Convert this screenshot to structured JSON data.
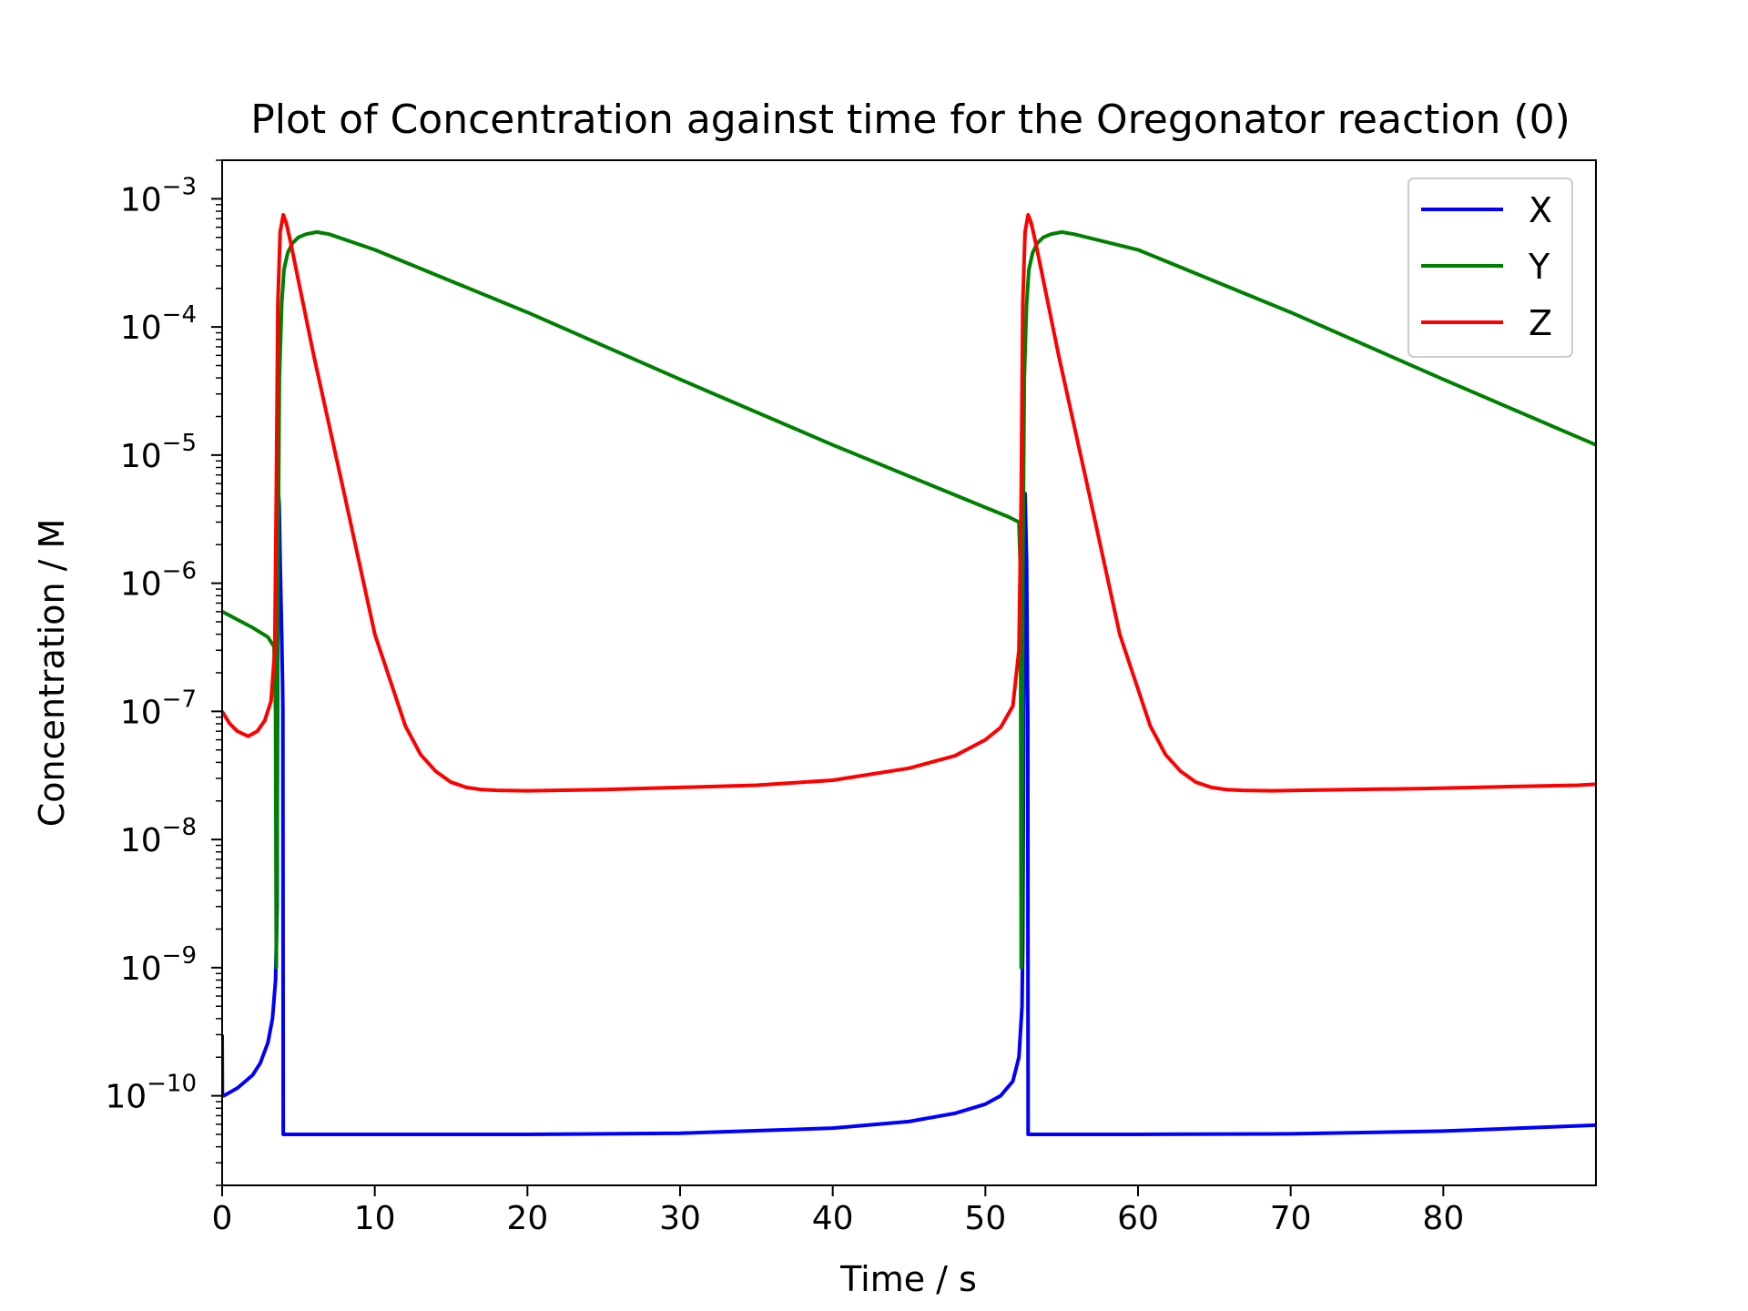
{
  "chart_data": {
    "type": "line",
    "title": "Plot of Concentration against time for the Oregonator reaction (0)",
    "xlabel": "Time / s",
    "ylabel": "Concentration / M",
    "xlim": [
      0,
      90
    ],
    "ylim": [
      2e-11,
      0.002
    ],
    "yscale": "log",
    "grid": false,
    "legend_position": "top-right",
    "x_ticks": [
      0,
      10,
      20,
      30,
      40,
      50,
      60,
      70,
      80
    ],
    "y_ticks": [
      {
        "value": 1e-10,
        "base": "10",
        "exp": "−10"
      },
      {
        "value": 1e-09,
        "base": "10",
        "exp": "−9"
      },
      {
        "value": 1e-08,
        "base": "10",
        "exp": "−8"
      },
      {
        "value": 1e-07,
        "base": "10",
        "exp": "−7"
      },
      {
        "value": 1e-06,
        "base": "10",
        "exp": "−6"
      },
      {
        "value": 1e-05,
        "base": "10",
        "exp": "−5"
      },
      {
        "value": 0.0001,
        "base": "10",
        "exp": "−4"
      },
      {
        "value": 0.001,
        "base": "10",
        "exp": "−3"
      }
    ],
    "series": [
      {
        "name": "X",
        "color": "#0000ff",
        "x": [
          0,
          0.02,
          0.1,
          1,
          2,
          2.5,
          3,
          3.3,
          3.5,
          3.6,
          3.62,
          3.66,
          3.7,
          3.74,
          3.8,
          3.9,
          3.96,
          3.98,
          4.0,
          4.02,
          5,
          10,
          20,
          30,
          40,
          45,
          48,
          50,
          51,
          51.8,
          52.2,
          52.4,
          52.45,
          52.5,
          52.55,
          52.6,
          52.7,
          52.76,
          52.78,
          52.8,
          52.82,
          55,
          60,
          70,
          80,
          90
        ],
        "y": [
          3e-10,
          1e-10,
          1e-10,
          1.15e-10,
          1.45e-10,
          1.8e-10,
          2.6e-10,
          4e-10,
          8e-10,
          3e-09,
          5e-08,
          1e-06,
          5e-06,
          4e-06,
          1.5e-06,
          4e-07,
          1.6e-07,
          1e-07,
          5e-11,
          5e-11,
          5e-11,
          5e-11,
          5e-11,
          5.1e-11,
          5.6e-11,
          6.3e-11,
          7.3e-11,
          8.6e-11,
          1e-10,
          1.3e-10,
          2e-10,
          5e-10,
          1.5e-09,
          5e-08,
          1e-06,
          5e-06,
          1.5e-06,
          1.6e-07,
          1e-07,
          5e-11,
          5e-11,
          5e-11,
          5e-11,
          5.05e-11,
          5.3e-11,
          5.9e-11
        ]
      },
      {
        "name": "Y",
        "color": "#008000",
        "x": [
          0,
          1,
          2,
          3,
          3.4,
          3.5,
          3.55,
          3.6,
          3.65,
          3.75,
          3.9,
          4.05,
          4.3,
          4.6,
          5,
          5.5,
          6.2,
          7,
          10,
          20,
          30,
          40,
          50,
          51.5,
          52.2,
          52.3,
          52.35,
          52.4,
          52.45,
          52.55,
          52.7,
          52.85,
          53.1,
          53.4,
          53.8,
          54.3,
          55,
          55.8,
          60,
          70,
          80,
          90
        ],
        "y": [
          6e-07,
          5.2e-07,
          4.5e-07,
          3.8e-07,
          3.2e-07,
          1e-07,
          1e-09,
          1e-08,
          1e-06,
          4e-05,
          0.00015,
          0.00028,
          0.00038,
          0.00045,
          0.0005,
          0.00053,
          0.00055,
          0.00053,
          0.0004,
          0.00013,
          3.9e-05,
          1.2e-05,
          3.9e-06,
          3.3e-06,
          3e-06,
          1.2e-06,
          1e-09,
          1e-08,
          1e-06,
          4e-05,
          0.00015,
          0.00028,
          0.00038,
          0.00045,
          0.0005,
          0.00053,
          0.00055,
          0.00053,
          0.0004,
          0.00013,
          3.9e-05,
          1.2e-05
        ]
      },
      {
        "name": "Z",
        "color": "#ff0000",
        "x": [
          0,
          0.5,
          1,
          1.7,
          2.3,
          2.8,
          3.2,
          3.45,
          3.55,
          3.65,
          3.8,
          4.0,
          4.2,
          4.5,
          6,
          8,
          10,
          12,
          13,
          14,
          15,
          16,
          17,
          18,
          20,
          25,
          30,
          35,
          40,
          45,
          48,
          50,
          51,
          51.8,
          52.2,
          52.35,
          52.45,
          52.6,
          52.8,
          53.0,
          53.3,
          54.8,
          56.8,
          58.8,
          60.8,
          61.8,
          62.8,
          63.8,
          64.8,
          65.8,
          66.8,
          68.8,
          73.8,
          78.8,
          83.8,
          88.8,
          90
        ],
        "y": [
          1e-07,
          8e-08,
          7e-08,
          6.4e-08,
          7e-08,
          8.5e-08,
          1.2e-07,
          3e-07,
          5e-06,
          0.00015,
          0.00055,
          0.00075,
          0.00065,
          0.00045,
          6e-05,
          5e-06,
          4e-07,
          7.7e-08,
          4.6e-08,
          3.4e-08,
          2.8e-08,
          2.55e-08,
          2.45e-08,
          2.42e-08,
          2.4e-08,
          2.45e-08,
          2.55e-08,
          2.65e-08,
          2.9e-08,
          3.6e-08,
          4.5e-08,
          6e-08,
          7.5e-08,
          1.1e-07,
          3e-07,
          5e-06,
          0.00015,
          0.00055,
          0.00075,
          0.00065,
          0.00045,
          6e-05,
          5e-06,
          4e-07,
          7.7e-08,
          4.6e-08,
          3.4e-08,
          2.8e-08,
          2.55e-08,
          2.45e-08,
          2.42e-08,
          2.4e-08,
          2.45e-08,
          2.5e-08,
          2.58e-08,
          2.65e-08,
          2.7e-08
        ]
      }
    ]
  }
}
